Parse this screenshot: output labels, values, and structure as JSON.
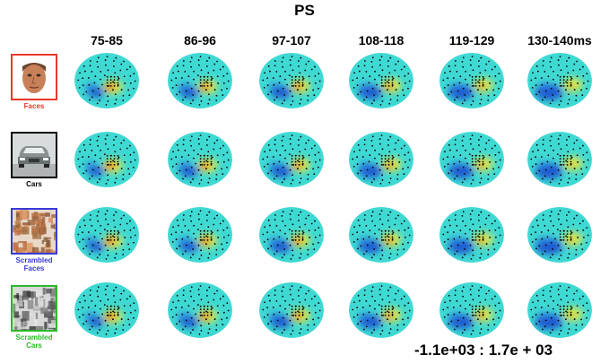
{
  "title": "PS",
  "time_windows": [
    "75-85",
    "86-96",
    "97-107",
    "108-118",
    "119-129",
    "130-140ms"
  ],
  "conditions": [
    {
      "label_lines": [
        "Faces"
      ],
      "color": "#e8392b",
      "icon": "face-photo"
    },
    {
      "label_lines": [
        "Cars"
      ],
      "color": "#000000",
      "icon": "car-photo"
    },
    {
      "label_lines": [
        "Scrambled",
        "Faces"
      ],
      "color": "#3a3ad8",
      "icon": "scrambled-face-noise"
    },
    {
      "label_lines": [
        "Scrambled",
        "Cars"
      ],
      "color": "#2db82d",
      "icon": "scrambled-car-noise"
    }
  ],
  "color_range": "-1.1e+03 : 1.7e + 03",
  "colormap": {
    "base": "#3fd9d3",
    "negative": "#1a3fd0",
    "positive": "#e81a10",
    "mid_positive": "#e8e840"
  }
}
